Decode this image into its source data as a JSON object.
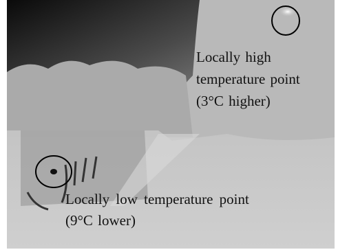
{
  "annotations": [
    {
      "lines": [
        "Locally high",
        "temperature point",
        "(3°C higher)"
      ]
    },
    {
      "lines": [
        "Locally low temperature point",
        "(9°C lower)"
      ]
    }
  ]
}
